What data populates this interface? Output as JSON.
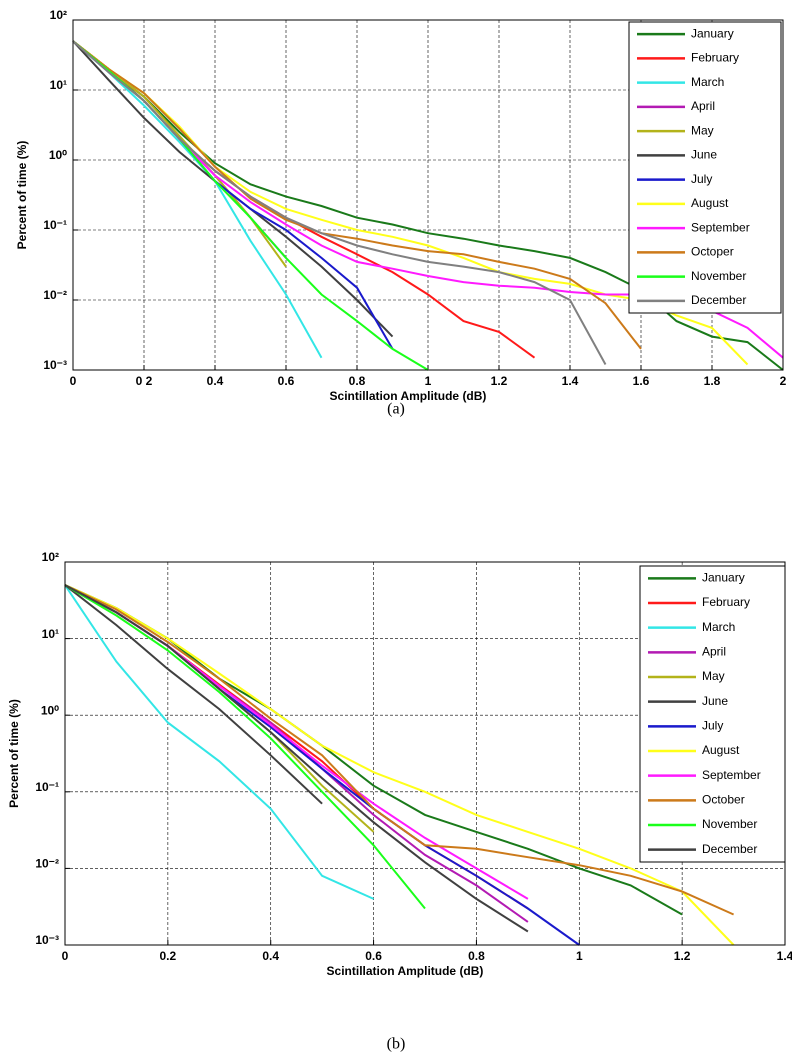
{
  "chart_data": [
    {
      "type": "line",
      "caption": "(a)",
      "xlabel": "Scintillation Amplitude (dB)",
      "ylabel": "Percent of time (%)",
      "log_y": true,
      "grid": true,
      "legend": "upper right",
      "xlim": [
        0,
        2
      ],
      "ylim": [
        0.001,
        100
      ],
      "xticks": [
        0,
        {
          "value": 0.2,
          "label": "0 2"
        },
        0.4,
        0.6,
        0.8,
        1,
        1.2,
        1.4,
        1.6,
        1.8,
        2
      ],
      "yticks": [
        {
          "value": 0.001,
          "label": "10⁻³"
        },
        {
          "value": 0.01,
          "label": "10⁻²"
        },
        {
          "value": 0.1,
          "label": "10⁻¹"
        },
        {
          "value": 1,
          "label": "10⁰"
        },
        {
          "value": 10,
          "label": "10¹"
        },
        {
          "value": 100,
          "label": "10²"
        }
      ],
      "x": [
        0,
        0.1,
        0.2,
        0.3,
        0.4,
        0.5,
        0.6,
        0.7,
        0.8,
        0.9,
        1.0,
        1.1,
        1.2,
        1.3,
        1.4,
        1.5,
        1.6,
        1.7,
        1.8,
        1.9,
        2.0
      ],
      "series": [
        {
          "name": "January",
          "color": "#1a7a1a",
          "values": [
            50,
            20,
            8,
            2.5,
            0.9,
            0.45,
            0.3,
            0.22,
            0.15,
            0.12,
            0.09,
            0.075,
            0.06,
            0.05,
            0.04,
            0.025,
            0.014,
            0.005,
            0.003,
            0.0025,
            0.001
          ]
        },
        {
          "name": "February",
          "color": "#ff1a1a",
          "values": [
            50,
            20,
            7,
            2,
            0.7,
            0.3,
            0.15,
            0.08,
            0.045,
            0.025,
            0.012,
            0.005,
            0.0035,
            0.0015,
            null,
            null,
            null,
            null,
            null,
            null,
            null
          ]
        },
        {
          "name": "March",
          "color": "#33e6e6",
          "values": [
            50,
            18,
            6,
            1.8,
            0.5,
            0.07,
            0.012,
            0.0015,
            null,
            null,
            null,
            null,
            null,
            null,
            null,
            null,
            null,
            null,
            null,
            null,
            null
          ]
        },
        {
          "name": "April",
          "color": "#b31ab3",
          "values": [
            50,
            19,
            7,
            2,
            0.6,
            0.15,
            0.04,
            null,
            null,
            null,
            null,
            null,
            null,
            null,
            null,
            null,
            null,
            null,
            null,
            null,
            null
          ]
        },
        {
          "name": "May",
          "color": "#b3b31a",
          "values": [
            50,
            20,
            8,
            2.2,
            0.6,
            0.15,
            0.03,
            null,
            null,
            null,
            null,
            null,
            null,
            null,
            null,
            null,
            null,
            null,
            null,
            null,
            null
          ]
        },
        {
          "name": "June",
          "color": "#404040",
          "values": [
            50,
            14,
            4,
            1.3,
            0.5,
            0.2,
            0.08,
            0.03,
            0.01,
            0.003,
            null,
            null,
            null,
            null,
            null,
            null,
            null,
            null,
            null,
            null,
            null
          ]
        },
        {
          "name": "July",
          "color": "#1a1acc",
          "values": [
            50,
            19,
            7,
            2,
            0.5,
            0.2,
            0.1,
            0.04,
            0.015,
            0.002,
            null,
            null,
            null,
            null,
            null,
            null,
            null,
            null,
            null,
            null,
            null
          ]
        },
        {
          "name": "August",
          "color": "#ffff1a",
          "values": [
            50,
            20,
            9,
            3,
            0.8,
            0.35,
            0.2,
            0.14,
            0.1,
            0.08,
            0.06,
            0.04,
            0.025,
            0.02,
            0.017,
            0.012,
            0.01,
            0.006,
            0.004,
            0.0012,
            null
          ]
        },
        {
          "name": "September",
          "color": "#ff1aff",
          "values": [
            50,
            19,
            7,
            2,
            0.6,
            0.25,
            0.12,
            0.06,
            0.035,
            0.028,
            0.022,
            0.018,
            0.016,
            0.015,
            0.013,
            0.012,
            0.012,
            0.01,
            0.007,
            0.004,
            0.0015
          ]
        },
        {
          "name": "Octoper",
          "color": "#cc7a1a",
          "values": [
            50,
            20,
            9,
            2.8,
            0.8,
            0.28,
            0.14,
            0.09,
            0.075,
            0.06,
            0.05,
            0.045,
            0.035,
            0.028,
            0.02,
            0.009,
            0.002,
            null,
            null,
            null,
            null
          ]
        },
        {
          "name": "November",
          "color": "#1aff1a",
          "values": [
            50,
            19,
            7,
            2,
            0.5,
            0.15,
            0.04,
            0.012,
            0.005,
            0.002,
            0.001,
            null,
            null,
            null,
            null,
            null,
            null,
            null,
            null,
            null,
            null
          ]
        },
        {
          "name": "December",
          "color": "#808080",
          "values": [
            50,
            18,
            7,
            2,
            0.7,
            0.3,
            0.15,
            0.09,
            0.06,
            0.045,
            0.035,
            0.03,
            0.025,
            0.018,
            0.01,
            0.0012,
            null,
            null,
            null,
            null,
            null
          ]
        }
      ]
    },
    {
      "type": "line",
      "caption": "(b)",
      "xlabel": "Scintillation Amplitude (dB)",
      "ylabel": "Percent of time (%)",
      "log_y": true,
      "grid": true,
      "legend": "upper right",
      "xlim": [
        0,
        1.4
      ],
      "ylim": [
        0.001,
        100
      ],
      "xticks": [
        0,
        0.2,
        0.4,
        0.6,
        0.8,
        1,
        1.2,
        1.4
      ],
      "yticks": [
        {
          "value": 0.001,
          "label": "10⁻³"
        },
        {
          "value": 0.01,
          "label": "10⁻²"
        },
        {
          "value": 0.1,
          "label": "10⁻¹"
        },
        {
          "value": 1,
          "label": "10⁰"
        },
        {
          "value": 10,
          "label": "10¹"
        },
        {
          "value": 100,
          "label": "10²"
        }
      ],
      "x": [
        0,
        0.1,
        0.2,
        0.3,
        0.4,
        0.5,
        0.6,
        0.7,
        0.8,
        0.9,
        1.0,
        1.1,
        1.2,
        1.3
      ],
      "series": [
        {
          "name": "January",
          "color": "#1a7a1a",
          "values": [
            50,
            25,
            10,
            3,
            1.2,
            0.4,
            0.12,
            0.05,
            0.03,
            0.018,
            0.01,
            0.006,
            0.0025,
            null
          ]
        },
        {
          "name": "February",
          "color": "#ff1a1a",
          "values": [
            50,
            22,
            8,
            2.5,
            0.8,
            0.25,
            0.06,
            0.02,
            0.008,
            0.003,
            null,
            null,
            null,
            null
          ]
        },
        {
          "name": "March",
          "color": "#33e6e6",
          "values": [
            50,
            5,
            0.8,
            0.25,
            0.06,
            0.008,
            0.004,
            null,
            null,
            null,
            null,
            null,
            null,
            null
          ]
        },
        {
          "name": "April",
          "color": "#b31ab3",
          "values": [
            50,
            22,
            8,
            2.4,
            0.8,
            0.2,
            0.05,
            0.015,
            0.006,
            0.002,
            null,
            null,
            null,
            null
          ]
        },
        {
          "name": "May",
          "color": "#b3b31a",
          "values": [
            50,
            22,
            8,
            2.2,
            0.6,
            0.12,
            0.03,
            null,
            null,
            null,
            null,
            null,
            null,
            null
          ]
        },
        {
          "name": "June",
          "color": "#404040",
          "values": [
            50,
            15,
            4,
            1.2,
            0.3,
            0.07,
            null,
            null,
            null,
            null,
            null,
            null,
            null,
            null
          ]
        },
        {
          "name": "July",
          "color": "#1a1acc",
          "values": [
            50,
            22,
            8,
            2.2,
            0.7,
            0.2,
            0.06,
            0.02,
            0.008,
            0.003,
            0.001,
            null,
            null,
            null
          ]
        },
        {
          "name": "August",
          "color": "#ffff1a",
          "values": [
            50,
            25,
            10,
            3.5,
            1.2,
            0.4,
            0.18,
            0.1,
            0.05,
            0.03,
            0.018,
            0.01,
            0.005,
            0.001
          ]
        },
        {
          "name": "September",
          "color": "#ff1aff",
          "values": [
            50,
            22,
            8,
            2.4,
            0.75,
            0.22,
            0.07,
            0.025,
            0.01,
            0.004,
            null,
            null,
            null,
            null
          ]
        },
        {
          "name": "October",
          "color": "#cc7a1a",
          "values": [
            50,
            24,
            9,
            3,
            0.9,
            0.3,
            0.06,
            0.02,
            0.018,
            0.014,
            0.011,
            0.008,
            0.005,
            0.0025
          ]
        },
        {
          "name": "November",
          "color": "#1aff1a",
          "values": [
            50,
            20,
            7,
            2,
            0.5,
            0.1,
            0.02,
            0.003,
            null,
            null,
            null,
            null,
            null,
            null
          ]
        },
        {
          "name": "December",
          "color": "#404040",
          "values": [
            50,
            22,
            8,
            2.2,
            0.6,
            0.15,
            0.04,
            0.012,
            0.004,
            0.0015,
            null,
            null,
            null,
            null
          ]
        }
      ]
    }
  ]
}
